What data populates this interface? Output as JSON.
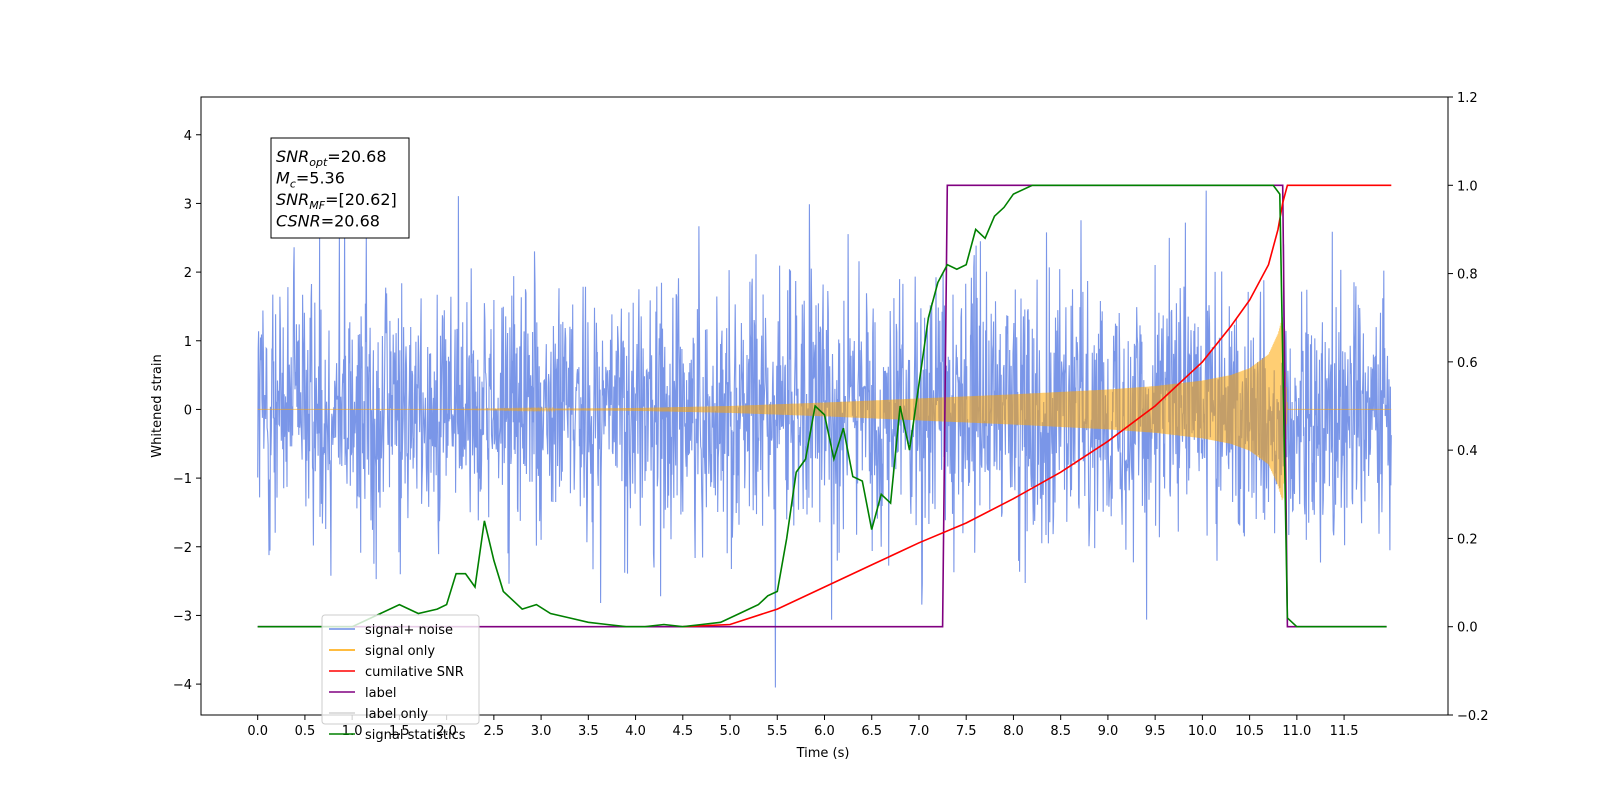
{
  "chart_data": {
    "type": "line",
    "xlabel": "Time (s)",
    "ylabel": "Whitened strain",
    "xlim": [
      -0.6,
      12.6
    ],
    "ylim": [
      -4.45,
      4.55
    ],
    "y2lim": [
      -0.2,
      1.2
    ],
    "x_ticks": [
      0.0,
      0.5,
      1.0,
      1.5,
      2.0,
      2.5,
      3.0,
      3.5,
      4.0,
      4.5,
      5.0,
      5.5,
      6.0,
      6.5,
      7.0,
      7.5,
      8.0,
      8.5,
      9.0,
      9.5,
      10.0,
      10.5,
      11.0,
      11.5
    ],
    "x_tick_labels": [
      "0.0",
      "0.5",
      "1.0",
      "1.5",
      "2.0",
      "2.5",
      "3.0",
      "3.5",
      "4.0",
      "4.5",
      "5.0",
      "5.5",
      "6.0",
      "6.5",
      "7.0",
      "7.5",
      "8.0",
      "8.5",
      "9.0",
      "9.5",
      "10.0",
      "10.5",
      "11.0",
      "11.5"
    ],
    "y_ticks": [
      -4,
      -3,
      -2,
      -1,
      0,
      1,
      2,
      3,
      4
    ],
    "y_tick_labels": [
      "−4",
      "−3",
      "−2",
      "−1",
      "0",
      "1",
      "2",
      "3",
      "4"
    ],
    "y2_ticks": [
      -0.2,
      0.0,
      0.2,
      0.4,
      0.6,
      0.8,
      1.0,
      1.2
    ],
    "y2_tick_labels": [
      "−0.2",
      "0.0",
      "0.2",
      "0.4",
      "0.6",
      "0.8",
      "1.0",
      "1.2"
    ],
    "grid": false,
    "legend_position": "bottom-left",
    "annotation": {
      "lines": [
        {
          "sym": "SNR",
          "sub": "opt",
          "val": "=20.68"
        },
        {
          "sym": "M",
          "sub": "c",
          "val": "=5.36"
        },
        {
          "sym": "SNR",
          "sub": "MF",
          "val": "=[20.62]"
        },
        {
          "sym": "CSNR",
          "sub": "",
          "val": "=20.68"
        }
      ]
    },
    "series": [
      {
        "name": "signal+ noise",
        "axis": "left",
        "color": "#6b8be5",
        "noise": {
          "t_start": 0.0,
          "t_end": 12.0,
          "typical_amplitude": 1.3,
          "max": 4.15,
          "min": -4.05
        }
      },
      {
        "name": "signal only",
        "axis": "left",
        "color": "#ffa500",
        "chirp_envelope": {
          "t": [
            0.0,
            2.0,
            4.0,
            5.0,
            6.0,
            7.0,
            8.0,
            9.0,
            9.5,
            10.0,
            10.3,
            10.5,
            10.7,
            10.8,
            10.85,
            10.9,
            12.0
          ],
          "a": [
            0.0,
            0.0,
            0.02,
            0.05,
            0.1,
            0.16,
            0.22,
            0.29,
            0.34,
            0.42,
            0.5,
            0.6,
            0.8,
            1.1,
            1.35,
            0.0,
            0.0
          ]
        }
      },
      {
        "name": "cumilative SNR",
        "axis": "right",
        "color": "#ff0000",
        "x": [
          4.5,
          5.0,
          5.5,
          6.0,
          6.5,
          7.0,
          7.5,
          8.0,
          8.5,
          9.0,
          9.5,
          10.0,
          10.3,
          10.5,
          10.7,
          10.8,
          10.85,
          10.9,
          12.0
        ],
        "y": [
          0.0,
          0.005,
          0.04,
          0.09,
          0.14,
          0.19,
          0.235,
          0.29,
          0.35,
          0.42,
          0.5,
          0.6,
          0.68,
          0.74,
          0.82,
          0.9,
          0.96,
          1.0,
          1.0
        ]
      },
      {
        "name": "label",
        "axis": "right",
        "color": "#800080",
        "x": [
          0.0,
          7.25,
          7.3,
          10.85,
          10.9,
          11.95
        ],
        "y": [
          0.0,
          0.0,
          1.0,
          1.0,
          0.0,
          0.0
        ]
      },
      {
        "name": "label only",
        "axis": "right",
        "color": "#d3d3d3",
        "x": [],
        "y": []
      },
      {
        "name": "signal statistics",
        "axis": "right",
        "color": "#008000",
        "x": [
          0.0,
          1.0,
          1.3,
          1.5,
          1.7,
          1.9,
          2.0,
          2.1,
          2.2,
          2.3,
          2.4,
          2.5,
          2.6,
          2.8,
          2.95,
          3.1,
          3.3,
          3.5,
          3.7,
          3.9,
          4.1,
          4.3,
          4.5,
          4.7,
          4.9,
          5.1,
          5.3,
          5.4,
          5.5,
          5.6,
          5.7,
          5.8,
          5.9,
          6.0,
          6.1,
          6.2,
          6.3,
          6.4,
          6.5,
          6.6,
          6.7,
          6.8,
          6.9,
          7.0,
          7.1,
          7.2,
          7.3,
          7.4,
          7.5,
          7.6,
          7.7,
          7.8,
          7.9,
          8.0,
          8.2,
          8.4,
          8.6,
          9.0,
          10.5,
          10.75,
          10.82,
          10.9,
          11.0,
          11.95
        ],
        "y": [
          0.0,
          0.0,
          0.03,
          0.05,
          0.03,
          0.04,
          0.05,
          0.12,
          0.12,
          0.09,
          0.24,
          0.15,
          0.08,
          0.04,
          0.05,
          0.03,
          0.02,
          0.01,
          0.005,
          0.0,
          0.0,
          0.005,
          0.0,
          0.005,
          0.01,
          0.03,
          0.05,
          0.07,
          0.08,
          0.2,
          0.35,
          0.38,
          0.5,
          0.48,
          0.38,
          0.45,
          0.34,
          0.33,
          0.22,
          0.3,
          0.28,
          0.5,
          0.4,
          0.55,
          0.7,
          0.78,
          0.82,
          0.81,
          0.82,
          0.9,
          0.88,
          0.93,
          0.95,
          0.98,
          1.0,
          1.0,
          1.0,
          1.0,
          1.0,
          1.0,
          0.98,
          0.02,
          0.0,
          0.0
        ]
      }
    ]
  }
}
